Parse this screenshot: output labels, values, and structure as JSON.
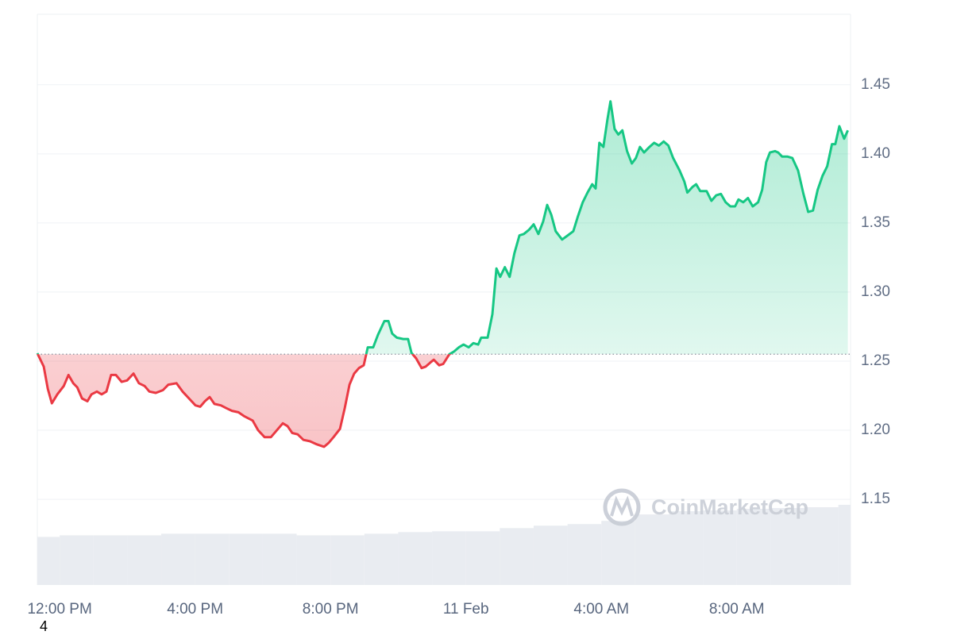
{
  "chart_data": {
    "type": "line",
    "x": [
      -0.66,
      -0.47,
      -0.35,
      -0.23,
      -0.07,
      0.12,
      0.26,
      0.4,
      0.52,
      0.66,
      0.82,
      0.94,
      1.1,
      1.24,
      1.38,
      1.52,
      1.66,
      1.83,
      1.99,
      2.18,
      2.34,
      2.51,
      2.65,
      2.84,
      3.05,
      3.21,
      3.45,
      3.63,
      3.82,
      4.01,
      4.15,
      4.29,
      4.43,
      4.57,
      4.76,
      4.92,
      5.09,
      5.28,
      5.46,
      5.7,
      5.86,
      6.05,
      6.24,
      6.45,
      6.59,
      6.73,
      6.87,
      7.03,
      7.2,
      7.39,
      7.57,
      7.81,
      7.95,
      8.09,
      8.28,
      8.42,
      8.56,
      8.7,
      8.84,
      8.98,
      9.1,
      9.26,
      9.4,
      9.59,
      9.71,
      9.82,
      9.96,
      10.15,
      10.29,
      10.39,
      10.53,
      10.69,
      10.81,
      10.95,
      11.05,
      11.21,
      11.33,
      11.51,
      11.65,
      11.79,
      11.93,
      12.08,
      12.22,
      12.36,
      12.45,
      12.64,
      12.78,
      12.9,
      13.01,
      13.15,
      13.29,
      13.43,
      13.58,
      13.71,
      13.86,
      14.0,
      14.14,
      14.28,
      14.4,
      14.52,
      14.65,
      14.84,
      15.01,
      15.17,
      15.31,
      15.45,
      15.59,
      15.73,
      15.83,
      15.94,
      16.06,
      16.18,
      16.27,
      16.39,
      16.5,
      16.62,
      16.76,
      16.9,
      17.02,
      17.14,
      17.26,
      17.42,
      17.56,
      17.7,
      17.84,
      17.98,
      18.12,
      18.31,
      18.45,
      18.54,
      18.69,
      18.8,
      18.92,
      19.11,
      19.25,
      19.39,
      19.53,
      19.67,
      19.81,
      19.95,
      20.05,
      20.19,
      20.33,
      20.47,
      20.63,
      20.75,
      20.87,
      20.98,
      21.13,
      21.22,
      21.34,
      21.5,
      21.64,
      21.81,
      21.97,
      22.11,
      22.25,
      22.39,
      22.53,
      22.67,
      22.81,
      22.91,
      23.03,
      23.17,
      23.28
    ],
    "values": [
      1.2557,
      1.246,
      1.23,
      1.2195,
      1.226,
      1.232,
      1.24,
      1.234,
      1.231,
      1.223,
      1.221,
      1.226,
      1.228,
      1.226,
      1.228,
      1.24,
      1.24,
      1.235,
      1.236,
      1.241,
      1.234,
      1.232,
      1.228,
      1.227,
      1.229,
      1.233,
      1.234,
      1.228,
      1.223,
      1.218,
      1.217,
      1.221,
      1.224,
      1.219,
      1.218,
      1.216,
      1.214,
      1.213,
      1.21,
      1.207,
      1.2,
      1.195,
      1.195,
      1.201,
      1.205,
      1.203,
      1.198,
      1.197,
      1.193,
      1.192,
      1.19,
      1.188,
      1.191,
      1.195,
      1.201,
      1.216,
      1.233,
      1.241,
      1.245,
      1.247,
      1.26,
      1.26,
      1.269,
      1.279,
      1.279,
      1.27,
      1.267,
      1.266,
      1.266,
      1.256,
      1.252,
      1.245,
      1.246,
      1.249,
      1.251,
      1.247,
      1.248,
      1.255,
      1.257,
      1.26,
      1.262,
      1.26,
      1.263,
      1.262,
      1.267,
      1.267,
      1.284,
      1.317,
      1.311,
      1.318,
      1.311,
      1.328,
      1.341,
      1.342,
      1.345,
      1.349,
      1.342,
      1.351,
      1.363,
      1.356,
      1.344,
      1.338,
      1.341,
      1.344,
      1.355,
      1.365,
      1.372,
      1.378,
      1.375,
      1.408,
      1.405,
      1.425,
      1.438,
      1.418,
      1.414,
      1.417,
      1.402,
      1.393,
      1.397,
      1.405,
      1.401,
      1.405,
      1.408,
      1.406,
      1.409,
      1.406,
      1.397,
      1.388,
      1.38,
      1.372,
      1.376,
      1.378,
      1.373,
      1.373,
      1.366,
      1.37,
      1.371,
      1.365,
      1.362,
      1.362,
      1.367,
      1.365,
      1.368,
      1.362,
      1.365,
      1.374,
      1.394,
      1.401,
      1.402,
      1.401,
      1.398,
      1.398,
      1.397,
      1.388,
      1.371,
      1.358,
      1.359,
      1.374,
      1.384,
      1.391,
      1.407,
      1.407,
      1.42,
      1.411,
      1.417
    ],
    "baseline": 1.255,
    "up_color": "#16c784",
    "down_color": "#ea3943",
    "volume": {
      "x": [
        -0.66,
        0,
        1,
        2,
        3,
        4,
        5,
        6,
        7,
        8,
        9,
        10,
        11,
        12,
        13,
        14,
        15,
        16,
        17,
        18,
        19,
        20,
        21,
        22,
        23
      ],
      "values": [
        60,
        62,
        62,
        62,
        64,
        64,
        64,
        64,
        62,
        62,
        64,
        66,
        67,
        67,
        71,
        74,
        76,
        80,
        88,
        92,
        93,
        95,
        96,
        97,
        100
      ]
    },
    "xlim": [
      -0.66,
      23.36
    ],
    "xticks": [
      {
        "value": 0,
        "label": "12:00 PM"
      },
      {
        "value": 4,
        "label": "4:00 PM"
      },
      {
        "value": 8,
        "label": "8:00 PM"
      },
      {
        "value": 12,
        "label": "11 Feb"
      },
      {
        "value": 16,
        "label": "4:00 AM"
      },
      {
        "value": 20,
        "label": "8:00 AM"
      }
    ],
    "ylim": [
      1.088,
      1.501
    ],
    "yticks": [
      1.15,
      {
        "value": 1.2,
        "label": "1.20"
      },
      1.25,
      {
        "value": 1.3,
        "label": "1.30"
      },
      1.35,
      {
        "value": 1.4,
        "label": "1.40"
      },
      1.45
    ],
    "grid": true,
    "watermark": "CoinMarketCap",
    "note": "4"
  }
}
